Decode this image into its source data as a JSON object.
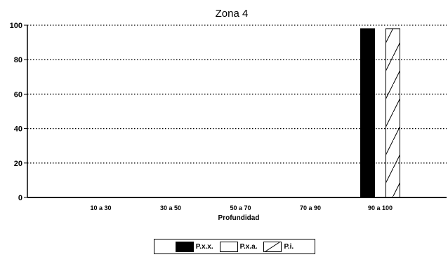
{
  "chart_data": {
    "type": "bar",
    "title": "Zona 4",
    "xlabel": "Profundidad",
    "ylabel": "",
    "ylim": [
      0,
      100
    ],
    "yticks": [
      0,
      20,
      40,
      60,
      80,
      100
    ],
    "grid": "dotted horizontal",
    "categories": [
      "10 a 30",
      "30 a 50",
      "50 a 70",
      "70 a 90",
      "90 a 100"
    ],
    "series": [
      {
        "name": "P.x.x.",
        "fill": "solid",
        "color": "#000000",
        "values": [
          0,
          0,
          0,
          0,
          98
        ]
      },
      {
        "name": "P.x.a.",
        "fill": "empty",
        "color": "#ffffff",
        "values": [
          0,
          0,
          0,
          0,
          0
        ]
      },
      {
        "name": "P.i.",
        "fill": "hatched",
        "color": "#000000",
        "values": [
          0,
          0,
          0,
          0,
          98
        ]
      }
    ],
    "legend_position": "bottom-center"
  }
}
